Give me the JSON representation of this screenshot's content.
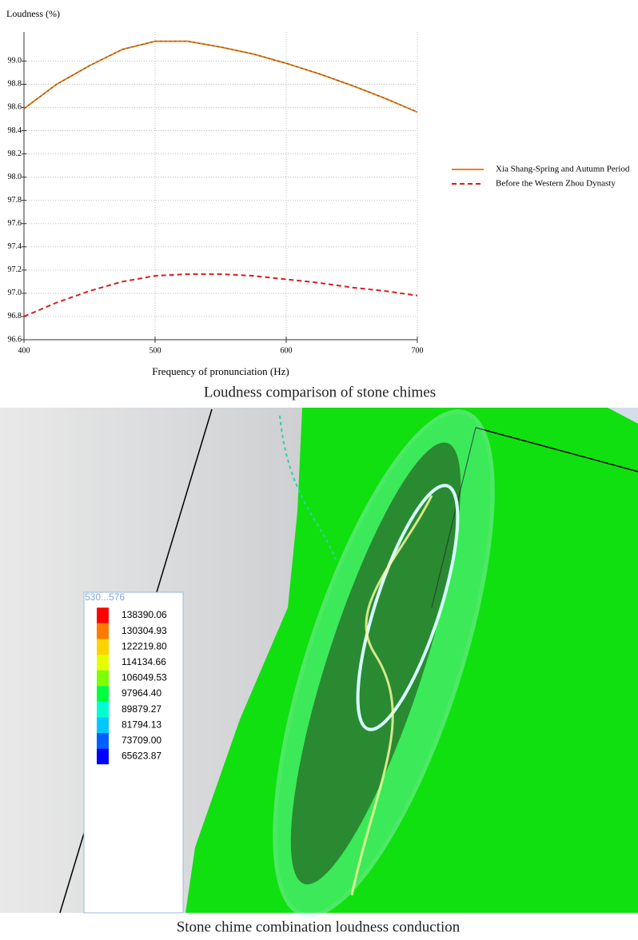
{
  "chart_data": {
    "type": "line",
    "y_label": "Loudness (%)",
    "x_label": "Frequency of pronunciation (Hz)",
    "x": [
      400,
      425,
      450,
      475,
      500,
      525,
      550,
      575,
      600,
      625,
      650,
      675,
      700
    ],
    "series": [
      {
        "name": "Xia Shang-Spring and Autumn Period",
        "color": "#e8821e",
        "style": "solid",
        "values": [
          98.59,
          98.8,
          98.96,
          99.1,
          99.17,
          99.17,
          99.12,
          99.06,
          98.98,
          98.89,
          98.79,
          98.68,
          98.56
        ]
      },
      {
        "name": "Before the Western Zhou Dynasty",
        "color": "#d42020",
        "style": "dashed",
        "values": [
          96.8,
          96.92,
          97.02,
          97.1,
          97.15,
          97.165,
          97.165,
          97.15,
          97.12,
          97.09,
          97.05,
          97.02,
          96.98
        ]
      }
    ],
    "xlim": [
      400,
      700
    ],
    "xticks": [
      400,
      500,
      600,
      700
    ],
    "ylim": [
      96.6,
      99.25
    ],
    "yticks": [
      96.6,
      96.8,
      {
        "value": 97,
        "label": "97.0"
      },
      97.2,
      97.4,
      97.6,
      97.8,
      {
        "value": 98,
        "label": "98.0"
      },
      98.2,
      98.4,
      98.6,
      98.8,
      {
        "value": 99,
        "label": "99.0"
      }
    ],
    "grid": true,
    "legend": "right"
  },
  "caption_top": "Loudness comparison of stone chimes",
  "simulation": {
    "range_label": "530...576",
    "legend_values": [
      "138390.06",
      "130304.93",
      "122219.80",
      "114134.66",
      "106049.53",
      "97964.40",
      "89879.27",
      "81794.13",
      "73709.00",
      "65623.87"
    ],
    "legend_colors": [
      "#ff0000",
      "#ff7a00",
      "#ffd200",
      "#e6ff00",
      "#7dff00",
      "#00ff3c",
      "#00ffd0",
      "#00c8ff",
      "#0060ff",
      "#0000ff"
    ],
    "caption": "Stone chime combination loudness conduction"
  }
}
